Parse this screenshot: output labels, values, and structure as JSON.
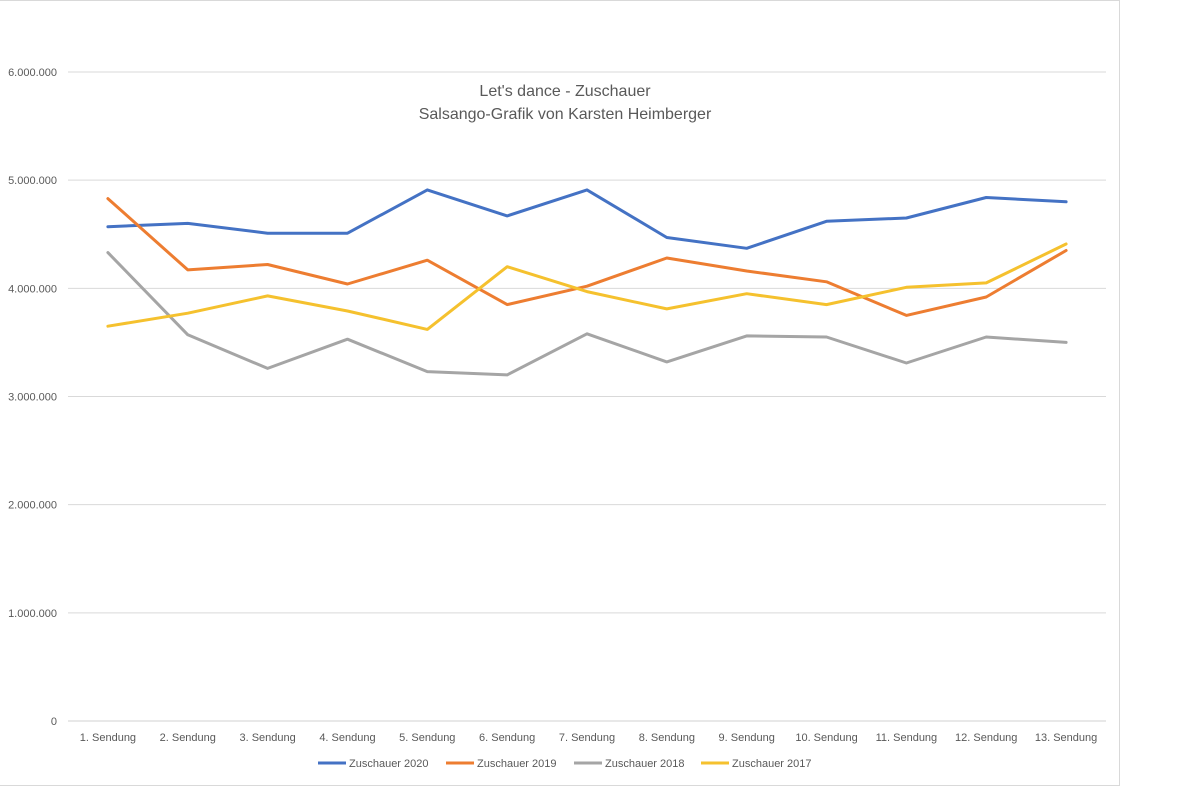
{
  "chart_data": {
    "type": "line",
    "title": "Let's dance - Zuschauer",
    "subtitle": "Salsango-Grafik von Karsten Heimberger",
    "xlabel": "",
    "ylabel": "",
    "ylim": [
      0,
      6000000
    ],
    "yticks": [
      0,
      1000000,
      2000000,
      3000000,
      4000000,
      5000000,
      6000000
    ],
    "ytick_labels": [
      "0",
      "1.000.000",
      "2.000.000",
      "3.000.000",
      "4.000.000",
      "5.000.000",
      "6.000.000"
    ],
    "grid": true,
    "legend_position": "bottom",
    "categories": [
      "1. Sendung",
      "2. Sendung",
      "3. Sendung",
      "4. Sendung",
      "5. Sendung",
      "6. Sendung",
      "7. Sendung",
      "8. Sendung",
      "9. Sendung",
      "10. Sendung",
      "11. Sendung",
      "12. Sendung",
      "13. Sendung"
    ],
    "series": [
      {
        "name": "Zuschauer 2020",
        "color": "#4472c4",
        "values": [
          4570000,
          4600000,
          4510000,
          4510000,
          4910000,
          4670000,
          4910000,
          4470000,
          4370000,
          4620000,
          4650000,
          4840000,
          4800000
        ]
      },
      {
        "name": "Zuschauer 2019",
        "color": "#ed7d31",
        "values": [
          4830000,
          4170000,
          4220000,
          4040000,
          4260000,
          3850000,
          4020000,
          4280000,
          4160000,
          4060000,
          3750000,
          3920000,
          4350000
        ]
      },
      {
        "name": "Zuschauer 2018",
        "color": "#a5a5a5",
        "values": [
          4330000,
          3570000,
          3260000,
          3530000,
          3230000,
          3200000,
          3580000,
          3320000,
          3560000,
          3550000,
          3310000,
          3550000,
          3500000
        ]
      },
      {
        "name": "Zuschauer 2017",
        "color": "#f5c12e",
        "values": [
          3650000,
          3770000,
          3930000,
          3790000,
          3620000,
          4200000,
          3970000,
          3810000,
          3950000,
          3850000,
          4010000,
          4050000,
          4410000
        ]
      }
    ]
  }
}
